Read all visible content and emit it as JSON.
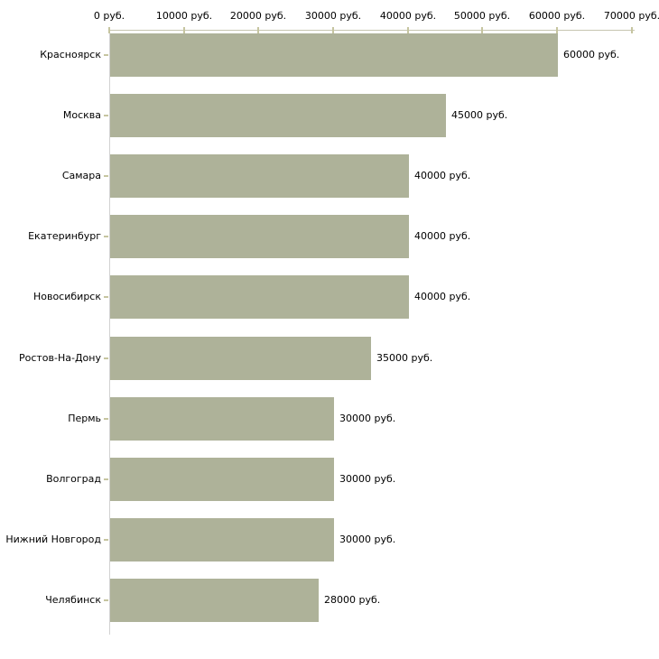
{
  "chart_data": {
    "type": "bar",
    "orientation": "horizontal",
    "title": "",
    "xlabel": "",
    "ylabel": "",
    "unit": "руб.",
    "xlim": [
      0,
      70000
    ],
    "grid": false,
    "legend": null,
    "categories": [
      "Красноярск",
      "Москва",
      "Самара",
      "Екатеринбург",
      "Новосибирск",
      "Ростов-На-Дону",
      "Пермь",
      "Волгоград",
      "Нижний Новгород",
      "Челябинск"
    ],
    "values": [
      60000,
      45000,
      40000,
      40000,
      40000,
      35000,
      30000,
      30000,
      30000,
      28000
    ],
    "value_labels": [
      "60000 руб.",
      "45000 руб.",
      "40000 руб.",
      "40000 руб.",
      "40000 руб.",
      "35000 руб.",
      "30000 руб.",
      "30000 руб.",
      "30000 руб.",
      "28000 руб."
    ],
    "x_ticks": [
      0,
      10000,
      20000,
      30000,
      40000,
      50000,
      60000,
      70000
    ],
    "x_tick_labels": [
      "0 руб.",
      "10000 руб.",
      "20000 руб.",
      "30000 руб.",
      "40000 руб.",
      "50000 руб.",
      "60000 руб.",
      "70000 руб."
    ],
    "colors": {
      "bar": "#aeb299",
      "x_axis_line": "#c6c5b0",
      "y_axis_line": "#d2d2d2",
      "tick": "#c6c5a0",
      "text": "#000000",
      "background": "#ffffff"
    }
  }
}
